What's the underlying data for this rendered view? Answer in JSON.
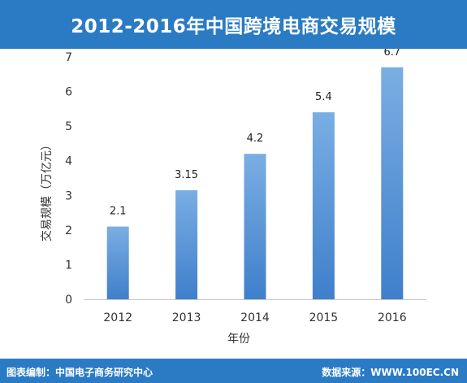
{
  "header": {
    "title": "2012-2016年中国跨境电商交易规模"
  },
  "footer": {
    "source_left": "图表编制：中国电子商务研究中心",
    "source_right": "数据来源：WWW.100EC.CN"
  },
  "colors": {
    "banner": "#2b7bc4",
    "bar_top": "#7aaee3",
    "bar_bottom": "#3f7fcb",
    "axis": "#c8c8c8"
  },
  "chart_data": {
    "type": "bar",
    "title": "2012-2016年中国跨境电商交易规模",
    "xlabel": "年份",
    "ylabel": "交易规模（万亿元）",
    "categories": [
      "2012",
      "2013",
      "2014",
      "2015",
      "2016"
    ],
    "values": [
      2.1,
      3.15,
      4.2,
      5.4,
      6.7
    ],
    "value_labels": [
      "2.1",
      "3.15",
      "4.2",
      "5.4",
      "6.7"
    ],
    "ylim": [
      0,
      7
    ],
    "yticks": [
      "0",
      "1",
      "2",
      "3",
      "4",
      "5",
      "6",
      "7"
    ],
    "grid": false,
    "legend": "none"
  }
}
